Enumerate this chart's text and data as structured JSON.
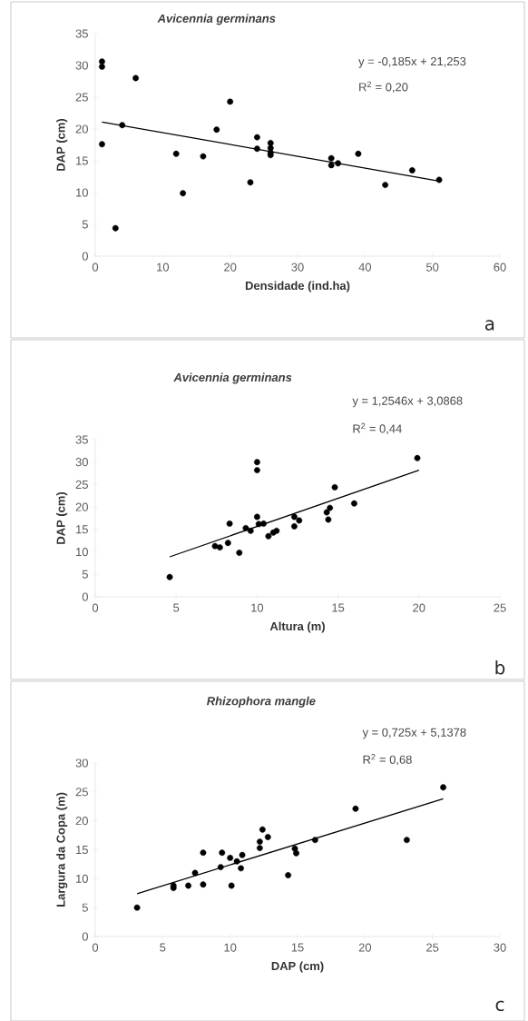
{
  "chart_data": [
    {
      "type": "scatter",
      "title": "Avicennia germinans",
      "xlabel": "Densidade (ind.ha)",
      "ylabel": "DAP (cm)",
      "xlim": [
        0,
        60
      ],
      "xticks": [
        0,
        10,
        20,
        30,
        40,
        50,
        60
      ],
      "ylim": [
        0,
        35
      ],
      "yticks": [
        0,
        5,
        10,
        15,
        20,
        25,
        30,
        35
      ],
      "grid": false,
      "annotations": [
        "y = -0,185x + 21,253",
        "R$^{2}$ = 0,20",
        "a"
      ],
      "series": [
        {
          "marker": "circle",
          "color": "#000000",
          "x": [
            1,
            1,
            6,
            1,
            4,
            3,
            12,
            13,
            16,
            18,
            20,
            23,
            24,
            24,
            26,
            26,
            26,
            26,
            35,
            35,
            36,
            39,
            43,
            47,
            51
          ],
          "values": [
            30.6,
            29.8,
            28,
            17.6,
            20.6,
            4.4,
            16.1,
            9.9,
            15.7,
            19.9,
            24.3,
            11.6,
            18.7,
            16.9,
            17.8,
            17,
            16.3,
            15.9,
            15.4,
            14.3,
            14.6,
            16.1,
            11.2,
            13.5,
            12
          ]
        },
        {
          "type": "line",
          "marker": "none",
          "color": "#000000",
          "x": [
            1,
            51
          ],
          "values": [
            21.1,
            11.8
          ]
        }
      ]
    },
    {
      "type": "scatter",
      "title": "Avicennia germinans",
      "xlabel": "Altura (m)",
      "ylabel": "DAP (cm)",
      "xlim": [
        0,
        25
      ],
      "xticks": [
        0,
        5,
        10,
        15,
        20,
        25
      ],
      "ylim": [
        0,
        35
      ],
      "yticks": [
        0,
        5,
        10,
        15,
        20,
        25,
        30,
        35
      ],
      "grid": false,
      "annotations": [
        "y = 1,2546x + 3,0868",
        "R$^{2}$ = 0,44",
        "b"
      ],
      "series": [
        {
          "marker": "circle",
          "color": "#000000",
          "x": [
            4.6,
            7.4,
            7.7,
            8.2,
            8.3,
            8.9,
            9.3,
            9.6,
            10,
            10,
            10,
            10.1,
            10.4,
            10.7,
            11,
            11.2,
            12.3,
            12.3,
            12.6,
            14.3,
            14.4,
            14.5,
            14.8,
            16,
            19.9
          ],
          "values": [
            4.4,
            11.3,
            11,
            12,
            16.3,
            9.8,
            15.3,
            14.7,
            30,
            28.2,
            17.8,
            16.2,
            16.3,
            13.5,
            14.3,
            14.7,
            17.8,
            15.7,
            17,
            18.8,
            17.2,
            19.8,
            24.4,
            20.8,
            30.9
          ]
        },
        {
          "type": "line",
          "marker": "none",
          "color": "#000000",
          "x": [
            4.6,
            20
          ],
          "values": [
            8.9,
            28.2
          ]
        }
      ]
    },
    {
      "type": "scatter",
      "title": "Rhizophora mangle",
      "xlabel": "DAP (cm)",
      "ylabel": "Largura da Copa (m)",
      "xlim": [
        0,
        30
      ],
      "xticks": [
        0,
        5,
        10,
        15,
        20,
        25,
        30
      ],
      "ylim": [
        0,
        30
      ],
      "yticks": [
        0,
        5,
        10,
        15,
        20,
        25,
        30
      ],
      "grid": false,
      "annotations": [
        "y = 0,725x + 5,1378",
        "R$^{2}$ = 0,68",
        "c"
      ],
      "series": [
        {
          "marker": "circle",
          "color": "#000000",
          "x": [
            3.1,
            5.8,
            5.8,
            6.9,
            7.4,
            8,
            8,
            9.3,
            9.4,
            10,
            10.1,
            10.5,
            10.8,
            10.9,
            12.2,
            12.2,
            12.4,
            12.8,
            14.3,
            14.8,
            14.9,
            16.3,
            19.3,
            23.1,
            25.8
          ],
          "values": [
            5,
            8.8,
            8.4,
            8.8,
            11,
            14.5,
            9,
            12,
            14.5,
            13.6,
            8.8,
            13,
            11.8,
            14.1,
            16.4,
            15.3,
            18.5,
            17.2,
            10.6,
            15.2,
            14.4,
            16.7,
            22.1,
            16.7,
            25.8
          ]
        },
        {
          "type": "line",
          "marker": "none",
          "color": "#000000",
          "x": [
            3.1,
            25.8
          ],
          "values": [
            7.4,
            23.8
          ]
        }
      ]
    }
  ]
}
